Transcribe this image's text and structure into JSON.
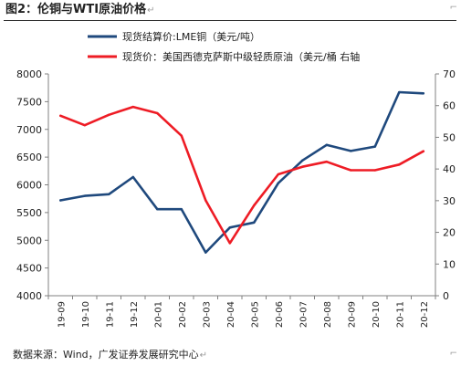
{
  "header": {
    "title": "图2：伦铜与WTI原油价格",
    "return_mark": "↵"
  },
  "footer": {
    "source": "数据来源：Wind，广发证券发展研究中心",
    "return_mark": "↵"
  },
  "chart_data": {
    "type": "line",
    "title": "",
    "categories": [
      "19-09",
      "19-10",
      "19-11",
      "19-12",
      "20-01",
      "20-02",
      "20-03",
      "20-04",
      "20-05",
      "20-06",
      "20-07",
      "20-08",
      "20-09",
      "20-10",
      "20-11",
      "20-12"
    ],
    "series": [
      {
        "name": "现货结算价:LME铜（美元/吨）",
        "axis": "left",
        "color": "#1F497D",
        "values": [
          5720,
          5800,
          5830,
          6140,
          5560,
          5560,
          4780,
          5230,
          5320,
          6030,
          6440,
          6720,
          6610,
          6690,
          7670,
          7650
        ]
      },
      {
        "name": "现货价：美国西德克萨斯中级轻质原油（美元/桶 右轴",
        "axis": "right",
        "color": "#EE1C25",
        "values": [
          56.8,
          53.8,
          57.1,
          59.6,
          57.6,
          50.5,
          30.1,
          16.6,
          28.5,
          38.3,
          40.7,
          42.3,
          39.6,
          39.6,
          41.4,
          45.6
        ]
      }
    ],
    "y_left": {
      "min": 4000,
      "max": 8000,
      "ticks": [
        "4000",
        "4500",
        "5000",
        "5500",
        "6000",
        "6500",
        "7000",
        "7500",
        "8000"
      ]
    },
    "y_right": {
      "min": 0,
      "max": 70,
      "ticks": [
        "0",
        "10",
        "20",
        "30",
        "40",
        "50",
        "60",
        "70"
      ]
    },
    "grid": false,
    "legend_position": "top-left"
  }
}
